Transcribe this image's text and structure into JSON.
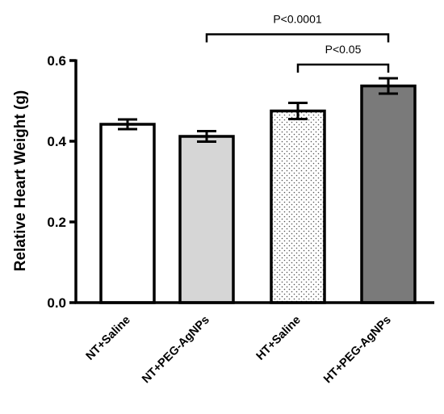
{
  "chart_data": {
    "type": "bar",
    "ylabel": "Relative Heart Weight (g)",
    "xlabel": "",
    "ylim": [
      0,
      0.6
    ],
    "yticks": [
      "0.0",
      "0.2",
      "0.4",
      "0.6"
    ],
    "grid": false,
    "categories": [
      "NT+Saline",
      "NT+PEG-AgNPs",
      "HT+Saline",
      "HT+PEG-AgNPs"
    ],
    "values": [
      0.442,
      0.412,
      0.475,
      0.537
    ],
    "errors": [
      0.012,
      0.013,
      0.02,
      0.019
    ],
    "fills": [
      {
        "pattern": "solid",
        "color": "#ffffff"
      },
      {
        "pattern": "solid",
        "color": "#d6d6d6"
      },
      {
        "pattern": "dots",
        "color": "#ffffff"
      },
      {
        "pattern": "solid",
        "color": "#7a7a7a"
      }
    ],
    "annotations": [
      {
        "text": "P<0.0001",
        "from": 1,
        "to": 3,
        "y": 0.665
      },
      {
        "text": "P<0.05",
        "from": 2,
        "to": 3,
        "y": 0.59
      }
    ]
  }
}
